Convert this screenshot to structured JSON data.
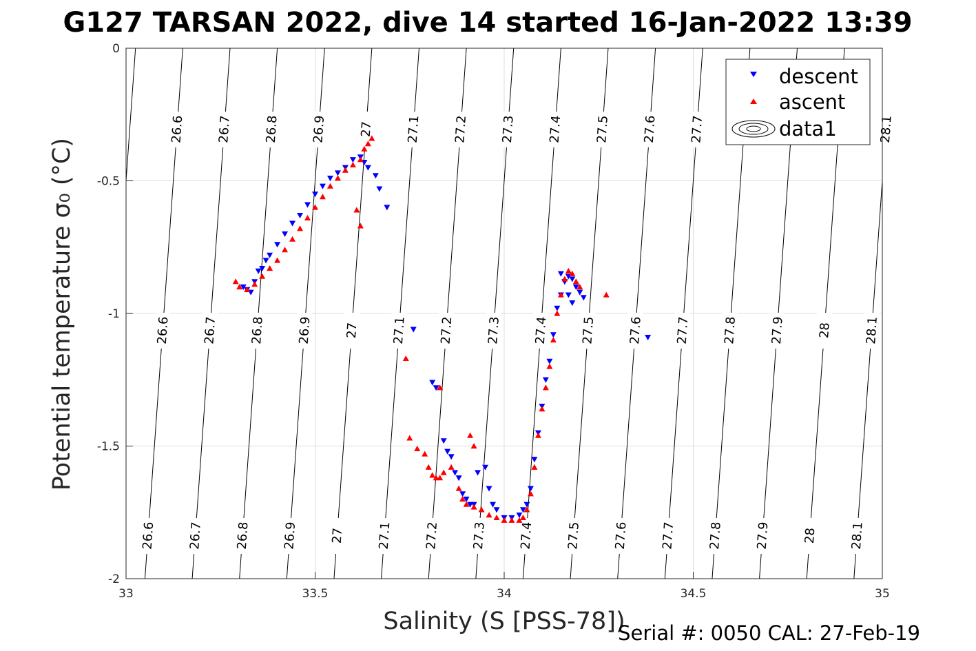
{
  "chart_data": {
    "type": "scatter",
    "title": "G127 TARSAN 2022, dive 14 started 16-Jan-2022 13:39",
    "xlabel": "Salinity (S [PSS-78])",
    "ylabel": "Potential temperature σ₀ (°C)",
    "xlim": [
      33,
      35
    ],
    "ylim": [
      -2,
      0
    ],
    "xticks": [
      33,
      33.5,
      34,
      34.5,
      35
    ],
    "xtick_labels": [
      "33",
      "33.5",
      "34",
      "34.5",
      "35"
    ],
    "yticks": [
      0,
      -0.5,
      -1,
      -1.5,
      -2
    ],
    "ytick_labels": [
      "0",
      "-0.5",
      "-1",
      "-1.5",
      "-2"
    ],
    "grid": true,
    "legend_position": "top-right",
    "legend": [
      "descent",
      "ascent",
      "data1"
    ],
    "colors": {
      "descent": "#0000ff",
      "ascent": "#ff0000",
      "contour": "#000000"
    },
    "density_contours": {
      "levels": [
        "26.6",
        "26.7",
        "26.8",
        "26.9",
        "27",
        "27.1",
        "27.2",
        "27.3",
        "27.4",
        "27.5",
        "27.6",
        "27.7",
        "27.8",
        "27.9",
        "28",
        "28.1"
      ],
      "label_rows": [
        {
          "levels": [
            "26.6",
            "26.7",
            "26.8",
            "26.9",
            "27",
            "27.1",
            "27.2",
            "27.3",
            "27.4",
            "27.5",
            "27.6",
            "27.7",
            "28.1"
          ]
        },
        {
          "levels": [
            "26.6",
            "26.7",
            "26.8",
            "26.9",
            "27",
            "27.1",
            "27.2",
            "27.3",
            "27.4",
            "27.5",
            "27.6",
            "27.7",
            "27.8",
            "27.9",
            "28",
            "28.1"
          ]
        },
        {
          "levels": [
            "26.6",
            "26.7",
            "26.8",
            "26.9",
            "27",
            "27.1",
            "27.2",
            "27.3",
            "27.4",
            "27.5",
            "27.6",
            "27.7",
            "27.8",
            "27.9",
            "28",
            "28.1"
          ]
        }
      ]
    },
    "series": [
      {
        "name": "descent",
        "marker": "triangle-down",
        "x": [
          33.31,
          33.32,
          33.33,
          33.34,
          33.35,
          33.36,
          33.37,
          33.38,
          33.4,
          33.42,
          33.44,
          33.46,
          33.48,
          33.5,
          33.52,
          33.54,
          33.56,
          33.58,
          33.6,
          33.62,
          33.63,
          33.64,
          33.66,
          33.67,
          33.69,
          33.76,
          33.81,
          33.82,
          33.84,
          33.85,
          33.86,
          33.87,
          33.88,
          33.89,
          33.9,
          33.91,
          33.92,
          33.93,
          33.95,
          33.96,
          33.97,
          33.98,
          34.0,
          34.02,
          34.04,
          34.05,
          34.06,
          34.07,
          34.08,
          34.09,
          34.1,
          34.11,
          34.12,
          34.13,
          34.14,
          34.15,
          34.16,
          34.17,
          34.18,
          34.19,
          34.2,
          34.21,
          34.38,
          34.15,
          34.16,
          34.17,
          34.18
        ],
        "y": [
          -0.9,
          -0.91,
          -0.92,
          -0.88,
          -0.84,
          -0.83,
          -0.8,
          -0.78,
          -0.74,
          -0.7,
          -0.66,
          -0.63,
          -0.59,
          -0.55,
          -0.52,
          -0.49,
          -0.47,
          -0.45,
          -0.42,
          -0.41,
          -0.43,
          -0.45,
          -0.48,
          -0.53,
          -0.6,
          -1.06,
          -1.26,
          -1.28,
          -1.48,
          -1.52,
          -1.54,
          -1.6,
          -1.62,
          -1.68,
          -1.7,
          -1.72,
          -1.72,
          -1.6,
          -1.58,
          -1.66,
          -1.72,
          -1.74,
          -1.77,
          -1.77,
          -1.76,
          -1.74,
          -1.72,
          -1.66,
          -1.55,
          -1.45,
          -1.35,
          -1.25,
          -1.18,
          -1.08,
          -0.98,
          -0.93,
          -0.88,
          -0.86,
          -0.87,
          -0.9,
          -0.92,
          -0.94,
          -1.09,
          -0.85,
          -0.88,
          -0.93,
          -0.96
        ]
      },
      {
        "name": "ascent",
        "marker": "triangle-up",
        "x": [
          33.29,
          33.3,
          33.32,
          33.34,
          33.36,
          33.38,
          33.4,
          33.42,
          33.44,
          33.46,
          33.48,
          33.5,
          33.52,
          33.54,
          33.56,
          33.58,
          33.6,
          33.62,
          33.63,
          33.64,
          33.65,
          33.61,
          33.62,
          33.74,
          33.75,
          33.77,
          33.79,
          33.8,
          33.81,
          33.82,
          33.83,
          33.84,
          33.86,
          33.88,
          33.89,
          33.9,
          33.92,
          33.94,
          33.96,
          33.98,
          34.0,
          34.02,
          34.04,
          34.05,
          34.06,
          34.07,
          34.08,
          34.09,
          34.1,
          34.11,
          34.12,
          34.13,
          34.14,
          34.15,
          34.16,
          34.17,
          34.18,
          34.19,
          34.2,
          34.27,
          33.83,
          33.91,
          33.92
        ],
        "y": [
          -0.88,
          -0.9,
          -0.91,
          -0.89,
          -0.86,
          -0.83,
          -0.8,
          -0.76,
          -0.72,
          -0.68,
          -0.64,
          -0.6,
          -0.56,
          -0.52,
          -0.49,
          -0.46,
          -0.44,
          -0.42,
          -0.38,
          -0.36,
          -0.34,
          -0.61,
          -0.67,
          -1.17,
          -1.47,
          -1.51,
          -1.53,
          -1.58,
          -1.61,
          -1.62,
          -1.62,
          -1.6,
          -1.58,
          -1.66,
          -1.7,
          -1.72,
          -1.73,
          -1.74,
          -1.76,
          -1.77,
          -1.78,
          -1.78,
          -1.78,
          -1.77,
          -1.74,
          -1.68,
          -1.58,
          -1.46,
          -1.36,
          -1.28,
          -1.2,
          -1.1,
          -1.0,
          -0.93,
          -0.87,
          -0.84,
          -0.85,
          -0.88,
          -0.9,
          -0.93,
          -1.28,
          -1.46,
          -1.5
        ]
      }
    ],
    "footer": "Serial #: 0050  CAL: 27-Feb-19"
  }
}
